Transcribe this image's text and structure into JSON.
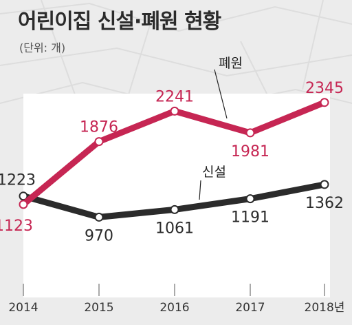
{
  "title": "어린이집 신설·폐원 현황",
  "subtitle": "(단위: 개)",
  "chart_data": {
    "type": "line",
    "x": [
      "2014",
      "2015",
      "2016",
      "2017",
      "2018"
    ],
    "x_tick_labels": [
      "2014",
      "2015",
      "2016",
      "2017",
      "2018년"
    ],
    "ylim": [
      800,
      2500
    ],
    "grid": false,
    "series": [
      {
        "name": "폐원",
        "values": [
          1123,
          1876,
          2241,
          1981,
          2345
        ],
        "color": "#c62653",
        "label_color": "#c62653"
      },
      {
        "name": "신설",
        "values": [
          1223,
          970,
          1061,
          1191,
          1362
        ],
        "color": "#2b2b2b",
        "label_color": "#2b2b2b"
      }
    ]
  },
  "colors": {
    "background": "#ececec",
    "plot_area": "#ffffff",
    "closure": "#c62653",
    "opening": "#2b2b2b"
  }
}
